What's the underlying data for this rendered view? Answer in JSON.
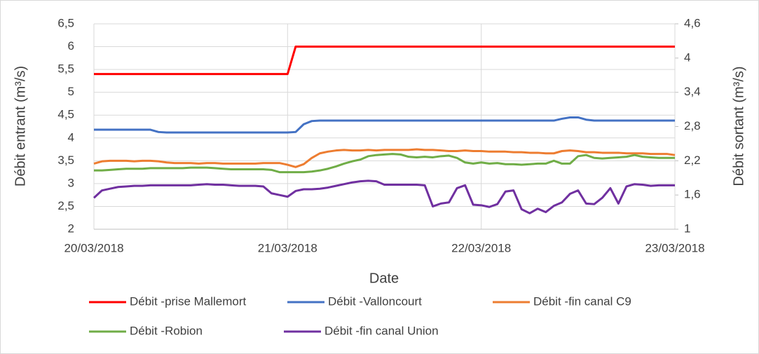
{
  "chart_data": {
    "type": "line",
    "xlabel": "Date",
    "ylabel": "Débit entrant (m³/s)",
    "y2label": "Débit sortant (m³/s)",
    "x": [
      0,
      1,
      2,
      3,
      4,
      5,
      6,
      7,
      8,
      9,
      10,
      11,
      12,
      13,
      14,
      15,
      16,
      17,
      18,
      19,
      20,
      21,
      22,
      23,
      24,
      25,
      26,
      27,
      28,
      29,
      30,
      31,
      32,
      33,
      34,
      35,
      36,
      37,
      38,
      39,
      40,
      41,
      42,
      43,
      44,
      45,
      46,
      47,
      48,
      49,
      50,
      51,
      52,
      53,
      54,
      55,
      56,
      57,
      58,
      59,
      60,
      61,
      62,
      63,
      64,
      65,
      66,
      67,
      68,
      69,
      70,
      71,
      72
    ],
    "xlim": [
      0,
      72
    ],
    "xticks": [
      {
        "value": 0,
        "label": "20/03/2018"
      },
      {
        "value": 24,
        "label": "21/03/2018"
      },
      {
        "value": 48,
        "label": "22/03/2018"
      },
      {
        "value": 72,
        "label": "23/03/2018"
      }
    ],
    "ylim": [
      2,
      6.5
    ],
    "yticks": [
      2,
      {
        "value": 2.5,
        "label": "2,5"
      },
      3,
      {
        "value": 3.5,
        "label": "3,5"
      },
      4,
      {
        "value": 4.5,
        "label": "4,5"
      },
      5,
      {
        "value": 5.5,
        "label": "5,5"
      },
      6,
      {
        "value": 6.5,
        "label": "6,5"
      }
    ],
    "y2lim": [
      1,
      4.6
    ],
    "y2ticks": [
      1,
      {
        "value": 1.6,
        "label": "1,6"
      },
      {
        "value": 2.2,
        "label": "2,2"
      },
      {
        "value": 2.8,
        "label": "2,8"
      },
      {
        "value": 3.4,
        "label": "3,4"
      },
      4,
      {
        "value": 4.6,
        "label": "4,6"
      }
    ],
    "grid": true,
    "legend": "bottom",
    "series": [
      {
        "name": "Débit -prise Mallemort",
        "color": "#ff0000",
        "values": [
          5.4,
          5.4,
          5.4,
          5.4,
          5.4,
          5.4,
          5.4,
          5.4,
          5.4,
          5.4,
          5.4,
          5.4,
          5.4,
          5.4,
          5.4,
          5.4,
          5.4,
          5.4,
          5.4,
          5.4,
          5.4,
          5.4,
          5.4,
          5.4,
          5.4,
          6,
          6,
          6,
          6,
          6,
          6,
          6,
          6,
          6,
          6,
          6,
          6,
          6,
          6,
          6,
          6,
          6,
          6,
          6,
          6,
          6,
          6,
          6,
          6,
          6,
          6,
          6,
          6,
          6,
          6,
          6,
          6,
          6,
          6,
          6,
          6,
          6,
          6,
          6,
          6,
          6,
          6,
          6,
          6,
          6,
          6,
          6,
          6
        ]
      },
      {
        "name": "Débit -Valloncourt",
        "color": "#4472c4",
        "values": [
          4.18,
          4.18,
          4.18,
          4.18,
          4.18,
          4.18,
          4.18,
          4.18,
          4.13,
          4.12,
          4.12,
          4.12,
          4.12,
          4.12,
          4.12,
          4.12,
          4.12,
          4.12,
          4.12,
          4.12,
          4.12,
          4.12,
          4.12,
          4.12,
          4.12,
          4.13,
          4.3,
          4.37,
          4.38,
          4.38,
          4.38,
          4.38,
          4.38,
          4.38,
          4.38,
          4.38,
          4.38,
          4.38,
          4.38,
          4.38,
          4.38,
          4.38,
          4.38,
          4.38,
          4.38,
          4.38,
          4.38,
          4.38,
          4.38,
          4.38,
          4.38,
          4.38,
          4.38,
          4.38,
          4.38,
          4.38,
          4.38,
          4.38,
          4.42,
          4.45,
          4.45,
          4.4,
          4.38,
          4.38,
          4.38,
          4.38,
          4.38,
          4.38,
          4.38,
          4.38,
          4.38,
          4.38,
          4.38
        ]
      },
      {
        "name": "Débit -fin canal C9",
        "color": "#ed7d31",
        "axis": "y2",
        "values": [
          2.15,
          2.19,
          2.2,
          2.2,
          2.2,
          2.19,
          2.2,
          2.2,
          2.19,
          2.17,
          2.16,
          2.16,
          2.16,
          2.15,
          2.16,
          2.16,
          2.15,
          2.15,
          2.15,
          2.15,
          2.15,
          2.16,
          2.16,
          2.16,
          2.13,
          2.09,
          2.14,
          2.25,
          2.33,
          2.36,
          2.38,
          2.39,
          2.38,
          2.38,
          2.39,
          2.38,
          2.39,
          2.39,
          2.39,
          2.39,
          2.4,
          2.39,
          2.39,
          2.38,
          2.37,
          2.37,
          2.38,
          2.37,
          2.37,
          2.36,
          2.36,
          2.36,
          2.35,
          2.35,
          2.34,
          2.34,
          2.33,
          2.33,
          2.37,
          2.38,
          2.37,
          2.35,
          2.35,
          2.34,
          2.34,
          2.34,
          2.33,
          2.33,
          2.33,
          2.32,
          2.32,
          2.32,
          2.3
        ]
      },
      {
        "name": "Débit -Robion",
        "color": "#70ad47",
        "axis": "y2",
        "values": [
          2.03,
          2.03,
          2.04,
          2.05,
          2.06,
          2.06,
          2.06,
          2.07,
          2.07,
          2.07,
          2.07,
          2.07,
          2.08,
          2.08,
          2.08,
          2.07,
          2.06,
          2.05,
          2.05,
          2.05,
          2.05,
          2.05,
          2.04,
          2.0,
          2.0,
          2.0,
          2.0,
          2.01,
          2.03,
          2.06,
          2.1,
          2.15,
          2.19,
          2.22,
          2.28,
          2.3,
          2.31,
          2.32,
          2.31,
          2.27,
          2.26,
          2.27,
          2.26,
          2.28,
          2.29,
          2.25,
          2.17,
          2.15,
          2.17,
          2.15,
          2.16,
          2.14,
          2.14,
          2.13,
          2.14,
          2.15,
          2.15,
          2.2,
          2.15,
          2.15,
          2.28,
          2.3,
          2.25,
          2.24,
          2.25,
          2.26,
          2.27,
          2.3,
          2.27,
          2.26,
          2.25,
          2.25,
          2.25
        ]
      },
      {
        "name": "Débit -fin canal Union",
        "color": "#7030a0",
        "axis": "y2",
        "values": [
          1.55,
          1.68,
          1.71,
          1.74,
          1.75,
          1.76,
          1.76,
          1.77,
          1.77,
          1.77,
          1.77,
          1.77,
          1.77,
          1.78,
          1.79,
          1.78,
          1.78,
          1.77,
          1.76,
          1.76,
          1.76,
          1.75,
          1.63,
          1.6,
          1.57,
          1.67,
          1.7,
          1.7,
          1.71,
          1.73,
          1.76,
          1.79,
          1.82,
          1.84,
          1.85,
          1.84,
          1.78,
          1.78,
          1.78,
          1.78,
          1.78,
          1.77,
          1.4,
          1.45,
          1.47,
          1.72,
          1.77,
          1.43,
          1.42,
          1.39,
          1.44,
          1.66,
          1.68,
          1.35,
          1.28,
          1.36,
          1.3,
          1.41,
          1.47,
          1.62,
          1.68,
          1.45,
          1.44,
          1.55,
          1.72,
          1.45,
          1.75,
          1.79,
          1.78,
          1.76,
          1.77,
          1.77,
          1.77
        ]
      }
    ]
  }
}
